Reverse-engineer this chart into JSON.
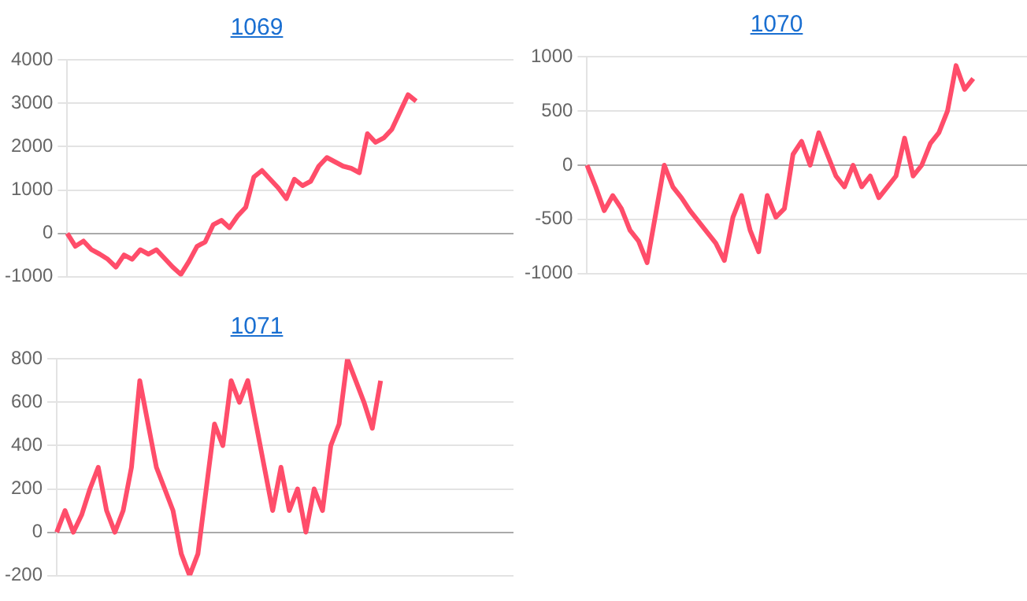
{
  "chart_data": [
    {
      "type": "line",
      "title": "1069",
      "categories": [
        null,
        null,
        null,
        null,
        null,
        null,
        null,
        null,
        null,
        null,
        null,
        null,
        null,
        null,
        null,
        null,
        null,
        null,
        null,
        null,
        null,
        null,
        null,
        null,
        null,
        null,
        null,
        null,
        null,
        null,
        null,
        null,
        null,
        null,
        null,
        null,
        null,
        null,
        null,
        null,
        null,
        null,
        null,
        null,
        null,
        null,
        null,
        null,
        null,
        null,
        null,
        null,
        null,
        null,
        null,
        null
      ],
      "series": [
        {
          "color": "#ff4d6a",
          "values": [
            0,
            -300,
            -180,
            -380,
            -480,
            -600,
            -780,
            -500,
            -600,
            -380,
            -480,
            -380,
            -580,
            -780,
            -950,
            -650,
            -300,
            -200,
            200,
            300,
            130,
            400,
            600,
            1300,
            1450,
            1250,
            1050,
            800,
            1250,
            1100,
            1200,
            1550,
            1750,
            1650,
            1550,
            1500,
            1400,
            2300,
            2100,
            2200,
            2400,
            2800,
            3200,
            3050,
            null,
            null,
            null,
            null,
            null,
            null,
            null,
            null,
            null,
            null,
            null,
            null
          ]
        }
      ],
      "ylim": [
        -1000,
        4000
      ],
      "yticks": [
        -1000,
        0,
        1000,
        2000,
        3000,
        4000
      ],
      "grid": "y",
      "tick_labels": "y",
      "marker": "none"
    },
    {
      "type": "line",
      "title": "1070",
      "categories": [
        null,
        null,
        null,
        null,
        null,
        null,
        null,
        null,
        null,
        null,
        null,
        null,
        null,
        null,
        null,
        null,
        null,
        null,
        null,
        null,
        null,
        null,
        null,
        null,
        null,
        null,
        null,
        null,
        null,
        null,
        null,
        null,
        null,
        null,
        null,
        null,
        null,
        null,
        null,
        null,
        null,
        null,
        null,
        null,
        null,
        null,
        null,
        null,
        null,
        null,
        null,
        null,
        null
      ],
      "series": [
        {
          "color": "#ff4d6a",
          "values": [
            0,
            -200,
            -420,
            -280,
            -400,
            -600,
            -700,
            -900,
            -450,
            0,
            -200,
            -300,
            -420,
            -520,
            -620,
            -720,
            -880,
            -480,
            -280,
            -600,
            -800,
            -280,
            -480,
            -400,
            100,
            220,
            0,
            300,
            100,
            -100,
            -200,
            0,
            -200,
            -100,
            -300,
            -200,
            -100,
            250,
            -100,
            0,
            200,
            300,
            500,
            920,
            700,
            800,
            null,
            null,
            null,
            null,
            null,
            null,
            null
          ]
        }
      ],
      "ylim": [
        -1000,
        1000
      ],
      "yticks": [
        -1000,
        -500,
        0,
        500,
        1000
      ],
      "grid": "y",
      "tick_labels": "y",
      "marker": "none"
    },
    {
      "type": "line",
      "title": "1071",
      "categories": [
        null,
        null,
        null,
        null,
        null,
        null,
        null,
        null,
        null,
        null,
        null,
        null,
        null,
        null,
        null,
        null,
        null,
        null,
        null,
        null,
        null,
        null,
        null,
        null,
        null,
        null,
        null,
        null,
        null,
        null,
        null,
        null,
        null,
        null,
        null,
        null,
        null,
        null,
        null,
        null,
        null,
        null,
        null,
        null,
        null,
        null,
        null,
        null,
        null,
        null,
        null,
        null,
        null,
        null,
        null,
        null
      ],
      "series": [
        {
          "color": "#ff4d6a",
          "values": [
            0,
            100,
            0,
            80,
            200,
            300,
            100,
            0,
            100,
            300,
            700,
            500,
            300,
            200,
            100,
            -100,
            -200,
            -100,
            200,
            500,
            400,
            700,
            600,
            700,
            500,
            300,
            100,
            300,
            100,
            200,
            0,
            200,
            100,
            400,
            500,
            800,
            700,
            600,
            480,
            700,
            null,
            null,
            null,
            null,
            null,
            null,
            null,
            null,
            null,
            null,
            null,
            null,
            null,
            null,
            null,
            null
          ]
        }
      ],
      "ylim": [
        -200,
        800
      ],
      "yticks": [
        -200,
        0,
        200,
        400,
        600,
        800
      ],
      "grid": "y",
      "tick_labels": "y",
      "marker": "none"
    }
  ]
}
